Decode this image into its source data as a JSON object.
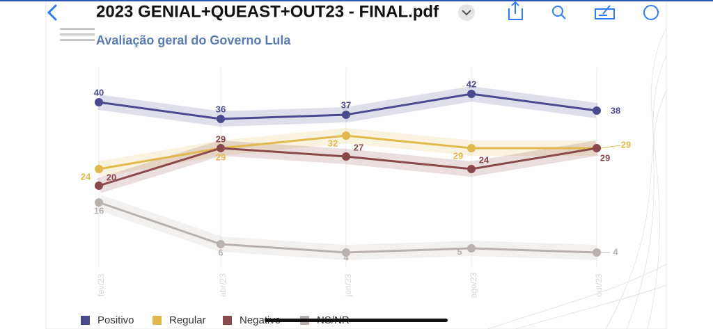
{
  "toolbar": {
    "title": "2023 GENIAL+QUEAST+OUT23 - FINAL.pdf"
  },
  "chart_data": {
    "type": "line",
    "title": "Avaliação geral do Governo Lula",
    "categories": [
      "fev/23",
      "abr/23",
      "jun/23",
      "ago/23",
      "out/23"
    ],
    "series": [
      {
        "name": "Positivo",
        "color": "#4b4a8e",
        "values": [
          40,
          36,
          37,
          42,
          38
        ]
      },
      {
        "name": "Regular",
        "color": "#e0b84c",
        "values": [
          24,
          29,
          32,
          29,
          29
        ]
      },
      {
        "name": "Negativo",
        "color": "#8a4a4c",
        "values": [
          20,
          29,
          27,
          24,
          29
        ]
      },
      {
        "name": "NS/NR",
        "color": "#b9b1ad",
        "values": [
          16,
          6,
          4,
          5,
          4
        ]
      }
    ],
    "grid": true,
    "legend": "bottom"
  }
}
